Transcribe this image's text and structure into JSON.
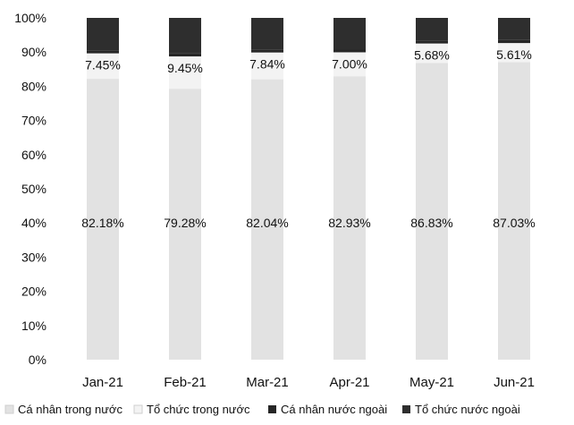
{
  "chart_data": {
    "type": "bar",
    "stacked": true,
    "orientation": "vertical",
    "categories": [
      "Jan-21",
      "Feb-21",
      "Mar-21",
      "Apr-21",
      "May-21",
      "Jun-21"
    ],
    "ylim": [
      0,
      100
    ],
    "yticks": [
      "0%",
      "10%",
      "20%",
      "30%",
      "40%",
      "50%",
      "60%",
      "70%",
      "80%",
      "90%",
      "100%"
    ],
    "grid": false,
    "legend_position": "bottom",
    "series": [
      {
        "name": "Cá nhân trong nước",
        "color": "#e2e2e2",
        "values": [
          82.18,
          79.28,
          82.04,
          82.93,
          86.83,
          87.03
        ],
        "labels": [
          "82.18%",
          "79.28%",
          "82.04%",
          "82.93%",
          "86.83%",
          "87.03%"
        ]
      },
      {
        "name": "Tổ chức trong nước",
        "color": "#f3f3f3",
        "values": [
          7.45,
          9.45,
          7.84,
          7.0,
          5.68,
          5.61
        ],
        "labels": [
          "7.45%",
          "9.45%",
          "7.84%",
          "7.00%",
          "5.68%",
          "5.61%"
        ]
      },
      {
        "name": "Cá nhân nước ngoài",
        "color": "#262626",
        "values": [
          0.9,
          1.0,
          0.9,
          0.9,
          0.9,
          0.9
        ],
        "labels": []
      },
      {
        "name": "Tổ chức nước ngoài",
        "color": "#2e2e2e",
        "values": [
          9.47,
          10.27,
          9.22,
          9.17,
          6.59,
          6.46
        ],
        "labels": []
      }
    ]
  }
}
